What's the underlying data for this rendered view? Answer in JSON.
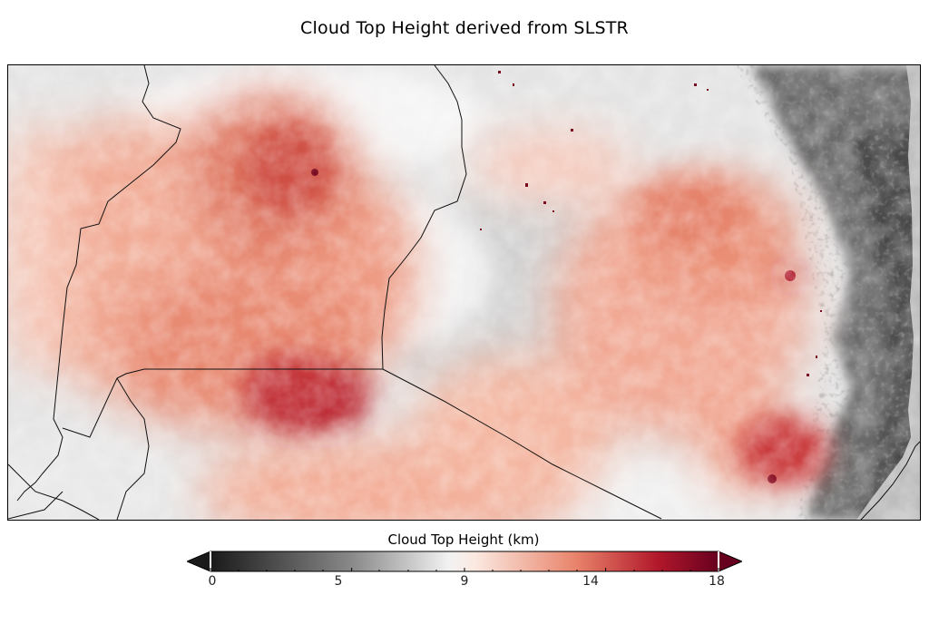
{
  "title": "Cloud Top Height derived from SLSTR",
  "colorbar": {
    "label": "Cloud Top Height (km)",
    "min": 0,
    "max": 18,
    "extend": "both",
    "ticks": [
      {
        "value": 0,
        "label": "0"
      },
      {
        "value": 5,
        "label": "5"
      },
      {
        "value": 9,
        "label": "9"
      },
      {
        "value": 14,
        "label": "14"
      },
      {
        "value": 18,
        "label": "18"
      }
    ],
    "colormap": [
      "#1a1a1a",
      "#8a8a8a",
      "#f2f2f2",
      "#f7f7f7",
      "#e8836a",
      "#b2182b",
      "#67001f"
    ]
  },
  "colors": {
    "no_data": "#bdbdbd",
    "low_cloud": "#4d4d4d",
    "border_line": "#111111"
  }
}
